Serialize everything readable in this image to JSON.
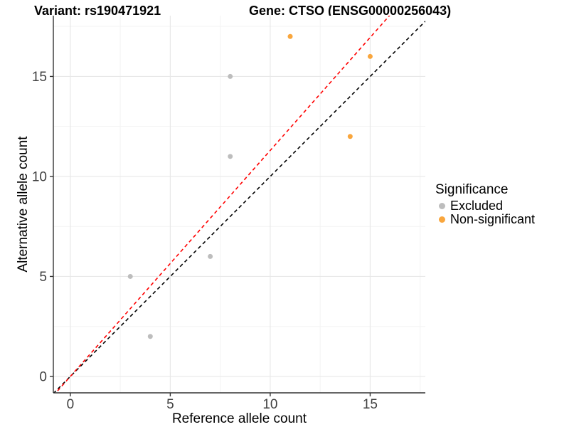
{
  "header": {
    "title_variant": "Variant: rs190471921",
    "title_gene": "Gene: CTSO (ENSG00000256043)"
  },
  "chart_data": {
    "type": "scatter",
    "xlabel": "Reference allele count",
    "ylabel": "Alternative allele count",
    "xlim": [
      -0.85,
      17.76
    ],
    "ylim": [
      -0.82,
      18.04
    ],
    "x_ticks": [
      0,
      5,
      10,
      15
    ],
    "y_ticks": [
      0,
      5,
      10,
      15
    ],
    "x_minor_ticks": [
      2.5,
      7.5,
      12.5,
      17.5
    ],
    "y_minor_ticks": [
      2.5,
      7.5,
      12.5,
      17.5
    ],
    "grid": "major and minor gridlines on, white panel background",
    "series": [
      {
        "name": "Excluded",
        "color": "#BDBDBD",
        "points": [
          [
            3,
            5
          ],
          [
            4,
            2
          ],
          [
            7,
            6
          ],
          [
            8,
            11
          ],
          [
            8,
            15
          ]
        ]
      },
      {
        "name": "Non-significant",
        "color": "#F9A63D",
        "points": [
          [
            11,
            17
          ],
          [
            14,
            12
          ],
          [
            15,
            16
          ]
        ]
      }
    ],
    "lines": [
      {
        "name": "identity-line",
        "color": "#000000",
        "style": "dashed",
        "slope": 1.0,
        "intercept": 0
      },
      {
        "name": "expected-ratio-line",
        "color": "#FF0000",
        "style": "dashed",
        "slope": 1.13,
        "intercept": 0
      }
    ],
    "legend": {
      "title": "Significance",
      "position": "right",
      "entries": [
        {
          "label": "Excluded",
          "color": "#BDBDBD"
        },
        {
          "label": "Non-significant",
          "color": "#F9A63D"
        }
      ]
    },
    "colors": {
      "background": "#FFFFFF",
      "grid_major": "#E8E8E8",
      "grid_minor": "#F3F3F3",
      "axis": "#333333",
      "tick_label": "#404040"
    }
  }
}
